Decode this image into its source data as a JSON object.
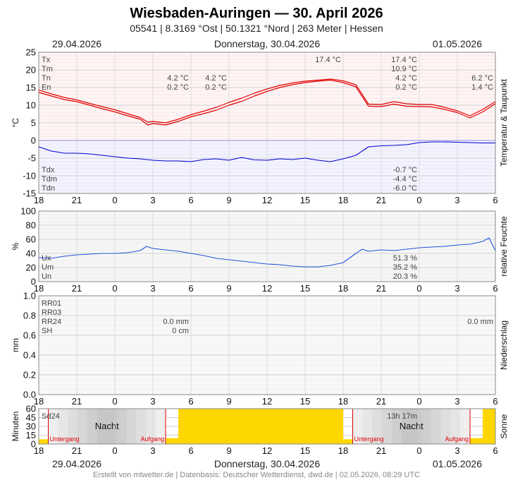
{
  "header": {
    "title": "Wiesbaden-Auringen  —  30. April 2026",
    "subtitle": "05541  |  8.3169 °Ost  |  50.1321 °Nord  |  263 Meter  |  Hessen"
  },
  "dates": {
    "left": "29.04.2026",
    "center": "Donnerstag, 30.04.2026",
    "right": "01.05.2026"
  },
  "footer": "Erstellt von mtwetter.de | Datenbasis: Deutscher Wetterdienst, dwd.de | 02.05.2026, 08:29 UTC",
  "chart_data": [
    {
      "type": "line",
      "id": "temperature",
      "ylabel": "°C",
      "side_label": "Temperatur & Taupunkt",
      "ylim": [
        -15,
        25
      ],
      "yticks": [
        -15,
        -10,
        -5,
        0,
        5,
        10,
        15,
        20,
        25
      ],
      "xlim": [
        0,
        36
      ],
      "xticks": [
        "18",
        "21",
        "0",
        "3",
        "6",
        "9",
        "12",
        "15",
        "18",
        "21",
        "0",
        "3",
        "6"
      ],
      "series": [
        {
          "name": "Tx",
          "color": "#e00000",
          "x": [
            0,
            1,
            2,
            3,
            4,
            5,
            6,
            7,
            8,
            8.6,
            9,
            10,
            11,
            12,
            13,
            14,
            15,
            16,
            17,
            18,
            19,
            20,
            21,
            22,
            23,
            24,
            25,
            26,
            27,
            28,
            29,
            30,
            31,
            32,
            33,
            34,
            35,
            36
          ],
          "y": [
            14.3,
            13.2,
            12.2,
            11.5,
            10.5,
            9.6,
            8.7,
            7.6,
            6.5,
            5.2,
            5.4,
            5.0,
            6.0,
            7.3,
            8.3,
            9.4,
            10.8,
            12.0,
            13.4,
            14.6,
            15.6,
            16.3,
            16.8,
            17.1,
            17.4,
            16.9,
            15.8,
            10.3,
            10.2,
            11.0,
            10.4,
            10.2,
            10.2,
            9.4,
            8.4,
            7.0,
            8.8,
            11.0
          ]
        },
        {
          "name": "Tn",
          "color": "#e00000",
          "x": [
            0,
            1,
            2,
            3,
            4,
            5,
            6,
            7,
            8,
            8.6,
            9,
            10,
            11,
            12,
            13,
            14,
            15,
            16,
            17,
            18,
            19,
            20,
            21,
            22,
            23,
            24,
            25,
            26,
            27,
            28,
            29,
            30,
            31,
            32,
            33,
            34,
            35,
            36
          ],
          "y": [
            13.6,
            12.6,
            11.6,
            11.0,
            10.0,
            9.0,
            8.1,
            7.0,
            6.0,
            4.4,
            4.8,
            4.4,
            5.4,
            6.7,
            7.6,
            8.6,
            10.0,
            11.1,
            12.6,
            13.9,
            15.0,
            15.8,
            16.4,
            16.8,
            17.1,
            16.4,
            15.2,
            9.7,
            9.6,
            10.3,
            9.7,
            9.6,
            9.5,
            8.8,
            7.9,
            6.4,
            8.1,
            10.4
          ]
        },
        {
          "name": "Tdx",
          "color": "#0000cc",
          "x": [
            0,
            1,
            2,
            3,
            4,
            5,
            6,
            7,
            8,
            9,
            10,
            11,
            12,
            13,
            14,
            15,
            16,
            17,
            18,
            19,
            20,
            21,
            22,
            23,
            24,
            25,
            26,
            27,
            28,
            29,
            30,
            31,
            32,
            33,
            34,
            35,
            36
          ],
          "y": [
            -1.8,
            -3.0,
            -3.6,
            -3.6,
            -3.8,
            -4.2,
            -4.6,
            -5.0,
            -5.2,
            -5.6,
            -5.8,
            -5.8,
            -6.0,
            -5.4,
            -5.2,
            -5.6,
            -4.8,
            -5.5,
            -5.6,
            -5.2,
            -5.4,
            -5.0,
            -5.6,
            -6.0,
            -5.2,
            -4.2,
            -1.8,
            -1.5,
            -1.4,
            -1.2,
            -0.6,
            -0.4,
            -0.4,
            -0.5,
            -0.6,
            -0.7,
            -0.7
          ]
        }
      ],
      "labels_top": [
        {
          "name": "Tx",
          "value": "17.4 °C"
        },
        {
          "name": "Tm",
          "value": "10.9 °C"
        },
        {
          "name": "Tn",
          "value": "4.2 °C"
        },
        {
          "name": "En",
          "value": "0.2 °C"
        }
      ],
      "label_tx_peak": "17.4 °C",
      "labels_col1": [
        "4.2 °C",
        "0.2 °C"
      ],
      "labels_col2": [
        "4.2 °C",
        "0.2 °C"
      ],
      "labels_right": [
        "6.2 °C",
        "1.4 °C"
      ],
      "labels_bottom": [
        {
          "name": "Tdx",
          "value": "-0.7 °C"
        },
        {
          "name": "Tdm",
          "value": "-4.4 °C"
        },
        {
          "name": "Tdn",
          "value": "-6.0 °C"
        }
      ]
    },
    {
      "type": "line",
      "id": "humidity",
      "ylabel": "%",
      "side_label": "relative Feuchte",
      "ylim": [
        0,
        100
      ],
      "yticks": [
        0,
        20,
        40,
        60,
        80,
        100
      ],
      "xlim": [
        0,
        36
      ],
      "xticks": [
        "18",
        "21",
        "0",
        "3",
        "6",
        "9",
        "12",
        "15",
        "18",
        "21",
        "0",
        "3",
        "6"
      ],
      "series": [
        {
          "name": "U",
          "color": "#2255dd",
          "x": [
            0,
            1,
            2,
            3,
            4,
            5,
            6,
            7,
            8,
            8.5,
            9,
            10,
            11,
            12,
            13,
            14,
            15,
            16,
            17,
            18,
            19,
            20,
            21,
            22,
            23,
            24,
            25,
            25.5,
            26,
            27,
            28,
            29,
            30,
            31,
            32,
            33,
            34,
            35,
            35.5,
            36
          ],
          "y": [
            34,
            33,
            36,
            38,
            39,
            40,
            40,
            41,
            44,
            50,
            47,
            45,
            43,
            40,
            37,
            33,
            31,
            29,
            27,
            25,
            24,
            22,
            21,
            21,
            23,
            27,
            40,
            46,
            43,
            45,
            44,
            46,
            48,
            49,
            50,
            52,
            53,
            57,
            62,
            44
          ]
        }
      ],
      "labels": [
        {
          "name": "Ux",
          "value": "51.3 %"
        },
        {
          "name": "Um",
          "value": "35.2 %"
        },
        {
          "name": "Un",
          "value": "20.3 %"
        }
      ]
    },
    {
      "type": "bar",
      "id": "precipitation",
      "ylabel": "mm",
      "side_label": "Niederschlag",
      "ylim": [
        0,
        1.0
      ],
      "yticks": [
        "0.0",
        "0.2",
        "0.4",
        "0.6",
        "0.8",
        "1.0"
      ],
      "xlim": [
        0,
        36
      ],
      "xticks": [
        "18",
        "21",
        "0",
        "3",
        "6",
        "9",
        "12",
        "15",
        "18",
        "21",
        "0",
        "3",
        "6"
      ],
      "labels": [
        "RR01",
        "RR03",
        "RR24",
        "SH"
      ],
      "rr24_left": "0.0 mm",
      "sh_left": "0 cm",
      "rr24_right": "0.0 mm"
    },
    {
      "type": "bar",
      "id": "sunshine",
      "ylabel": "Minuten",
      "side_label": "Sonne",
      "ylim": [
        0,
        60
      ],
      "yticks": [
        0,
        15,
        30,
        45,
        60
      ],
      "xlim": [
        0,
        36
      ],
      "xticks": [
        "18",
        "21",
        "0",
        "3",
        "6",
        "9",
        "12",
        "15",
        "18",
        "21",
        "0",
        "3",
        "6"
      ],
      "label_sd24": "Sd24",
      "sd24_value": "13h 17m",
      "night_label": "Nacht",
      "sunset_label": "Untergang",
      "sunrise_label": "Aufgang",
      "sunset_1": 0.75,
      "sunrise_1": 10.0,
      "sunset_2": 24.75,
      "sunrise_2": 34.0,
      "sun_color": "#ffd700",
      "bars": [
        {
          "start": 0,
          "end": 0.75,
          "minutes": 8
        },
        {
          "start": 10.0,
          "end": 11.0,
          "minutes": 10
        },
        {
          "start": 11.0,
          "end": 24.0,
          "minutes": 60
        },
        {
          "start": 24.0,
          "end": 24.75,
          "minutes": 8
        },
        {
          "start": 34.0,
          "end": 35.0,
          "minutes": 10
        },
        {
          "start": 35.0,
          "end": 36.0,
          "minutes": 60
        }
      ]
    }
  ]
}
